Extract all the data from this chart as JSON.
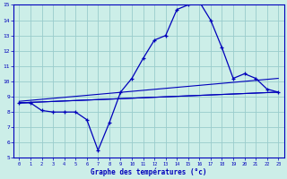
{
  "xlabel": "Graphe des températures (°c)",
  "background_color": "#cceee8",
  "line_color": "#0000bb",
  "grid_color": "#99cccc",
  "hours": [
    0,
    1,
    2,
    3,
    4,
    5,
    6,
    7,
    8,
    9,
    10,
    11,
    12,
    13,
    14,
    15,
    16,
    17,
    18,
    19,
    20,
    21,
    22,
    23
  ],
  "temp_main": [
    8.6,
    8.6,
    8.1,
    8.0,
    8.0,
    8.0,
    7.5,
    5.5,
    7.3,
    9.3,
    10.2,
    11.5,
    12.7,
    13.0,
    14.7,
    15.0,
    15.2,
    14.0,
    12.2,
    10.2,
    10.5,
    10.2,
    9.5,
    9.3
  ],
  "line2_x": [
    0,
    23
  ],
  "line2_y": [
    8.6,
    9.3
  ],
  "line3_x": [
    0,
    23
  ],
  "line3_y": [
    8.6,
    9.3
  ],
  "line4_x": [
    0,
    23
  ],
  "line4_y": [
    8.7,
    10.2
  ],
  "ylim": [
    5,
    15
  ],
  "xlim": [
    -0.5,
    23.5
  ],
  "yticks": [
    5,
    6,
    7,
    8,
    9,
    10,
    11,
    12,
    13,
    14,
    15
  ],
  "xticks": [
    0,
    1,
    2,
    3,
    4,
    5,
    6,
    7,
    8,
    9,
    10,
    11,
    12,
    13,
    14,
    15,
    16,
    17,
    18,
    19,
    20,
    21,
    22,
    23
  ]
}
